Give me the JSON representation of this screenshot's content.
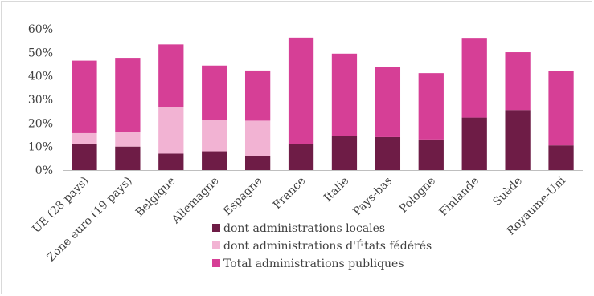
{
  "chart_data": {
    "type": "bar",
    "stacked": true,
    "categories": [
      "UE (28 pays)",
      "Zone euro (19 pays)",
      "Belgique",
      "Allemagne",
      "Espagne",
      "France",
      "Italie",
      "Pays-bas",
      "Pologne",
      "Finlande",
      "Suède",
      "Royaume-Uni"
    ],
    "series": [
      {
        "name": "dont administrations locales",
        "color": "#6e1c46",
        "values": [
          11.0,
          10.0,
          7.0,
          8.0,
          5.8,
          11.0,
          14.5,
          14.0,
          13.0,
          22.3,
          25.5,
          10.5
        ]
      },
      {
        "name": "dont administrations d'États fédérés",
        "color": "#f2b3d3",
        "values": [
          4.7,
          6.3,
          19.6,
          13.4,
          15.2,
          0,
          0,
          0,
          0,
          0,
          0,
          0
        ]
      },
      {
        "name": "Total administrations publiques",
        "color": "#d63f96",
        "values": [
          30.8,
          31.4,
          26.8,
          23.0,
          21.3,
          45.3,
          35.0,
          29.7,
          28.2,
          33.9,
          24.6,
          31.6
        ]
      }
    ],
    "yticks": [
      "0%",
      "10%",
      "20%",
      "30%",
      "40%",
      "50%",
      "60%"
    ],
    "ylim": [
      0,
      60
    ],
    "grid": false,
    "legend_position": "bottom"
  }
}
